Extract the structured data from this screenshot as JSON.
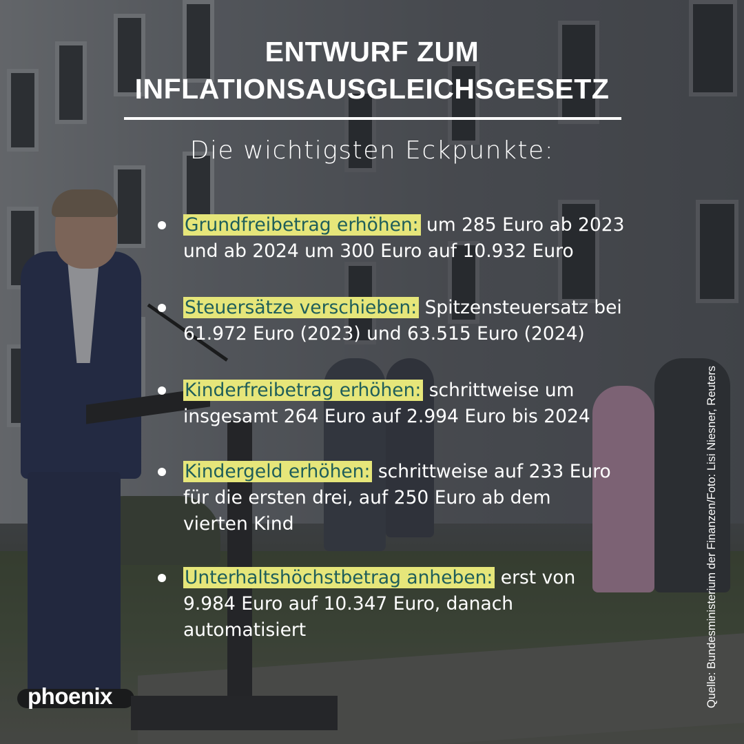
{
  "title_line1": "ENTWURF ZUM",
  "title_line2": "INFLATIONSAUSGLEICHSGESETZ",
  "subtitle": "Die wichtigsten Eckpunkte:",
  "bullets": [
    {
      "label": "Grundfreibetrag erhöhen:",
      "line1_rest": " um 285 Euro ab 2023",
      "line2": "und ab 2024 um 300 Euro auf 10.932 Euro",
      "line3": ""
    },
    {
      "label": "Steuersätze verschieben:",
      "line1_rest": " Spitzensteuersatz bei",
      "line2": "61.972 Euro (2023) und 63.515 Euro (2024)",
      "line3": ""
    },
    {
      "label": "Kinderfreibetrag erhöhen:",
      "line1_rest": " schrittweise um",
      "line2": "insgesamt 264 Euro auf 2.994 Euro bis 2024",
      "line3": ""
    },
    {
      "label": "Kindergeld erhöhen:",
      "line1_rest": " schrittweise auf 233 Euro",
      "line2": "für die ersten drei, auf 250 Euro ab dem",
      "line3": "vierten Kind"
    },
    {
      "label": "Unterhaltshöchstbetrag anheben:",
      "line1_rest": " erst von",
      "line2": "9.984 Euro auf 10.347 Euro, danach",
      "line3": "automatisiert"
    }
  ],
  "credit": "Quelle: Bundesministerium der Finanzen/Foto: Lisi Niesner, Reuters",
  "logo": "phoenix",
  "colors": {
    "highlight": "#e6e67a",
    "highlight_text": "#1f5e5a",
    "text": "#ffffff"
  }
}
